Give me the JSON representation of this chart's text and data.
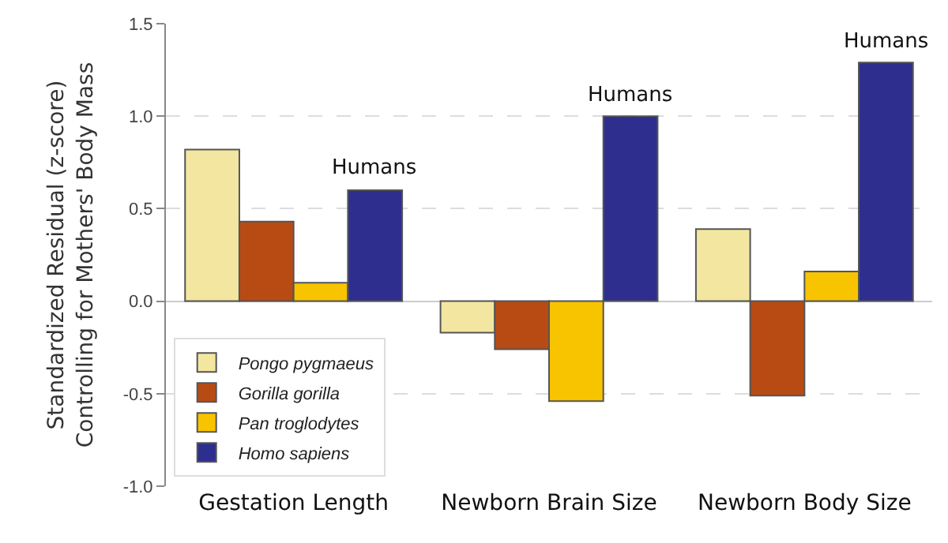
{
  "chart_data": {
    "type": "bar",
    "ylabel": "Standardized Residual (z-score)\nControlling for Mothers' Body Mass",
    "categories": [
      "Gestation Length",
      "Newborn Brain Size",
      "Newborn Body Size"
    ],
    "series": [
      {
        "name": "Pongo pygmaeus",
        "color": "#f3e6a0",
        "values": [
          0.82,
          -0.17,
          0.39
        ]
      },
      {
        "name": "Gorilla gorilla",
        "color": "#b84b13",
        "values": [
          0.43,
          -0.26,
          -0.51
        ]
      },
      {
        "name": "Pan troglodytes",
        "color": "#f8c400",
        "values": [
          0.1,
          -0.54,
          0.16
        ]
      },
      {
        "name": "Homo sapiens",
        "color": "#2e2e8f",
        "values": [
          0.6,
          1.0,
          1.29
        ]
      }
    ],
    "annotations": [
      "Humans",
      "Humans",
      "Humans"
    ],
    "ylim": [
      -1.0,
      1.5
    ],
    "yticks": [
      {
        "value": -1.0,
        "label": "-1.0"
      },
      {
        "value": -0.5,
        "label": "-0.5"
      },
      {
        "value": 0,
        "label": "0.0"
      },
      {
        "value": 0.5,
        "label": "0.5"
      },
      {
        "value": 1.0,
        "label": "1.0"
      },
      {
        "value": 1.5,
        "label": "1.5"
      }
    ],
    "grid": "y",
    "legend": "bottom left"
  }
}
